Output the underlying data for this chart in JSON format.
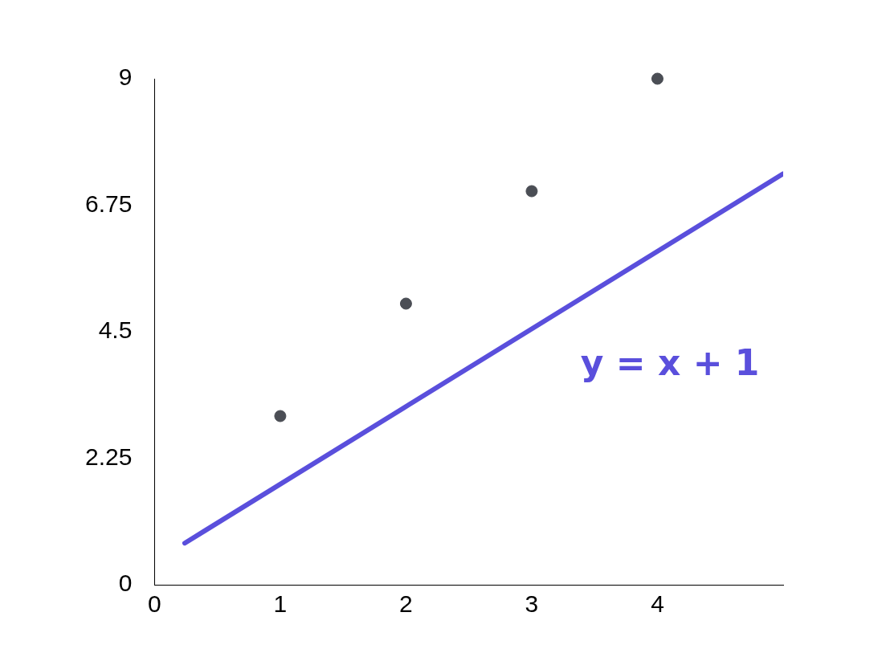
{
  "chart_data": {
    "type": "scatter",
    "x": [
      1,
      2,
      3,
      4
    ],
    "series": [
      {
        "type": "scatter",
        "color": "#4b4e55",
        "marker": "circle",
        "values": [
          3,
          5,
          7,
          9
        ]
      },
      {
        "type": "line",
        "color": "#5a4fdc",
        "x": [
          0.24,
          5
        ],
        "values": [
          0.74,
          7.31
        ]
      }
    ],
    "xlim": [
      0,
      5
    ],
    "xticks": [
      0,
      1,
      2,
      3,
      4
    ],
    "ylim": [
      0,
      9
    ],
    "yticks": [
      0,
      2.25,
      4.5,
      6.75,
      9
    ],
    "annotations": [
      "y = x + 1"
    ]
  }
}
